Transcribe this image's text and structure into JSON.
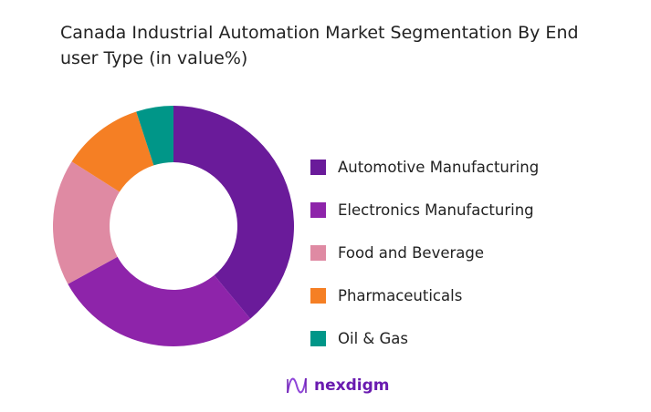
{
  "chart_data": {
    "type": "donut",
    "title": "Canada Industrial Automation Market Segmentation By End user Type (in value%)",
    "categories": [
      "Automotive Manufacturing",
      "Electronics Manufacturing",
      "Food and Beverage",
      "Pharmaceuticals",
      "Oil & Gas"
    ],
    "values": [
      39,
      28,
      17,
      11,
      5
    ],
    "colors": [
      "#6a1b9a",
      "#8e24aa",
      "#df8aa3",
      "#f57f24",
      "#009688"
    ],
    "legend_position": "right"
  },
  "brand": {
    "name": "nexdigm",
    "color": "#6a1bb0"
  }
}
